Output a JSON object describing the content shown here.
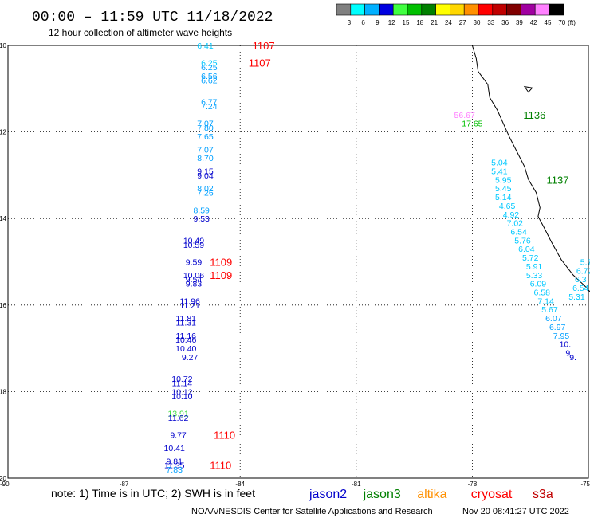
{
  "header": {
    "title": "00:00 – 11:59 UTC 11/18/2022",
    "subtitle": "12 hour collection of altimeter wave heights"
  },
  "colorbar": {
    "unit_label": "(ft)",
    "bins": [
      {
        "color": "#808080",
        "label": "3"
      },
      {
        "color": "#00ffff",
        "label": "6"
      },
      {
        "color": "#00b0ff",
        "label": "9"
      },
      {
        "color": "#0000e0",
        "label": "12"
      },
      {
        "color": "#40ff40",
        "label": "15"
      },
      {
        "color": "#00c000",
        "label": "18"
      },
      {
        "color": "#008000",
        "label": "21"
      },
      {
        "color": "#ffff00",
        "label": "24"
      },
      {
        "color": "#ffd700",
        "label": "27"
      },
      {
        "color": "#ff9000",
        "label": "30"
      },
      {
        "color": "#ff0000",
        "label": "33"
      },
      {
        "color": "#c00000",
        "label": "36"
      },
      {
        "color": "#800000",
        "label": "39"
      },
      {
        "color": "#a000a0",
        "label": "42"
      },
      {
        "color": "#ff80ff",
        "label": "45"
      },
      {
        "color": "#000000",
        "label": "70"
      }
    ]
  },
  "legend": {
    "note": "note: 1) Time is in UTC; 2) SWH is in feet",
    "satellites": [
      {
        "name": "jason2",
        "color": "#0000cc"
      },
      {
        "name": "jason3",
        "color": "#008000"
      },
      {
        "name": "altika",
        "color": "#ff9000"
      },
      {
        "name": "cryosat",
        "color": "#ff0000"
      },
      {
        "name": "s3a",
        "color": "#c00000"
      }
    ]
  },
  "footer": {
    "credit": "NOAA/NESDIS Center for Satellite Applications and Research",
    "timestamp": "Nov 20 08:41:27 UTC 2022"
  },
  "chart_data": {
    "type": "scatter",
    "xlim": [
      -90,
      -75
    ],
    "ylim": [
      -20,
      -10
    ],
    "x_ticks": [
      "-90",
      "-87",
      "-84",
      "-81",
      "-78",
      "-75"
    ],
    "y_ticks": [
      "-10",
      "-12",
      "-14",
      "-16",
      "-18",
      "-20"
    ],
    "grid": true,
    "points": [
      {
        "x": -84.9,
        "y": -10.0,
        "label": "6.41",
        "color": "#00c8ff"
      },
      {
        "x": -84.8,
        "y": -10.4,
        "label": "6.25",
        "color": "#00c8ff"
      },
      {
        "x": -84.8,
        "y": -10.5,
        "label": "6.25",
        "color": "#00a0ff"
      },
      {
        "x": -84.8,
        "y": -10.7,
        "label": "6.56",
        "color": "#00a0ff"
      },
      {
        "x": -84.8,
        "y": -10.8,
        "label": "6.62",
        "color": "#00a0ff"
      },
      {
        "x": -84.8,
        "y": -11.3,
        "label": "6.77",
        "color": "#00a0ff"
      },
      {
        "x": -84.8,
        "y": -11.4,
        "label": "7.24",
        "color": "#00a0ff"
      },
      {
        "x": -84.9,
        "y": -11.8,
        "label": "7.07",
        "color": "#00a0ff"
      },
      {
        "x": -84.9,
        "y": -11.9,
        "label": "7.80",
        "color": "#00a0ff"
      },
      {
        "x": -84.9,
        "y": -12.1,
        "label": "7.65",
        "color": "#00a0ff"
      },
      {
        "x": -84.9,
        "y": -12.4,
        "label": "7.07",
        "color": "#00a0ff"
      },
      {
        "x": -84.9,
        "y": -12.6,
        "label": "8.70",
        "color": "#00a0ff"
      },
      {
        "x": -84.9,
        "y": -12.9,
        "label": "9.15",
        "color": "#0000cc"
      },
      {
        "x": -84.9,
        "y": -13.0,
        "label": "9.04",
        "color": "#0000cc"
      },
      {
        "x": -84.9,
        "y": -13.3,
        "label": "8.02",
        "color": "#00a0ff"
      },
      {
        "x": -84.9,
        "y": -13.4,
        "label": "7.26",
        "color": "#00a0ff"
      },
      {
        "x": -85.0,
        "y": -13.8,
        "label": "8.59",
        "color": "#00a0ff"
      },
      {
        "x": -85.0,
        "y": -14.0,
        "label": "9.53",
        "color": "#0000cc"
      },
      {
        "x": -85.2,
        "y": -14.5,
        "label": "10.49",
        "color": "#0000cc"
      },
      {
        "x": -85.2,
        "y": -14.6,
        "label": "10.59",
        "color": "#0000cc"
      },
      {
        "x": -85.2,
        "y": -15.0,
        "label": "9.59",
        "color": "#0000cc"
      },
      {
        "x": -85.2,
        "y": -15.3,
        "label": "10.06",
        "color": "#0000cc"
      },
      {
        "x": -85.2,
        "y": -15.4,
        "label": "9.54",
        "color": "#0000cc"
      },
      {
        "x": -85.2,
        "y": -15.5,
        "label": "9.83",
        "color": "#0000cc"
      },
      {
        "x": -85.3,
        "y": -15.9,
        "label": "11.96",
        "color": "#0000cc"
      },
      {
        "x": -85.3,
        "y": -16.0,
        "label": "11.21",
        "color": "#0000cc"
      },
      {
        "x": -85.4,
        "y": -16.3,
        "label": "11.81",
        "color": "#0000cc"
      },
      {
        "x": -85.4,
        "y": -16.4,
        "label": "11.31",
        "color": "#0000cc"
      },
      {
        "x": -85.4,
        "y": -16.7,
        "label": "11.16",
        "color": "#0000cc"
      },
      {
        "x": -85.4,
        "y": -16.8,
        "label": "10.46",
        "color": "#0000cc"
      },
      {
        "x": -85.4,
        "y": -17.0,
        "label": "10.40",
        "color": "#0000cc"
      },
      {
        "x": -85.3,
        "y": -17.2,
        "label": "9.27",
        "color": "#0000cc"
      },
      {
        "x": -85.5,
        "y": -17.7,
        "label": "10.72",
        "color": "#0000cc"
      },
      {
        "x": -85.5,
        "y": -17.8,
        "label": "11.14",
        "color": "#0000cc"
      },
      {
        "x": -85.5,
        "y": -18.0,
        "label": "10.12",
        "color": "#0000cc"
      },
      {
        "x": -85.5,
        "y": -18.1,
        "label": "10.10",
        "color": "#0000cc"
      },
      {
        "x": -85.6,
        "y": -18.5,
        "label": "13.91",
        "color": "#40dd40"
      },
      {
        "x": -85.6,
        "y": -18.6,
        "label": "11.62",
        "color": "#0000cc"
      },
      {
        "x": -85.6,
        "y": -19.0,
        "label": "9.77",
        "color": "#0000cc"
      },
      {
        "x": -85.7,
        "y": -19.3,
        "label": "10.41",
        "color": "#0000cc"
      },
      {
        "x": -85.7,
        "y": -19.6,
        "label": "9.81",
        "color": "#0000cc"
      },
      {
        "x": -85.7,
        "y": -19.7,
        "label": "11.35",
        "color": "#0000cc"
      },
      {
        "x": -85.7,
        "y": -19.8,
        "label": "7.83",
        "color": "#00a0ff"
      },
      {
        "x": -78.2,
        "y": -11.6,
        "label": "56.67",
        "color": "#ff80ff"
      },
      {
        "x": -78.0,
        "y": -11.8,
        "label": "17.65",
        "color": "#00c000"
      },
      {
        "x": -77.3,
        "y": -12.7,
        "label": "5.04",
        "color": "#00c8ff"
      },
      {
        "x": -77.3,
        "y": -12.9,
        "label": "5.41",
        "color": "#00c8ff"
      },
      {
        "x": -77.2,
        "y": -13.1,
        "label": "5.95",
        "color": "#00c8ff"
      },
      {
        "x": -77.2,
        "y": -13.3,
        "label": "5.45",
        "color": "#00c8ff"
      },
      {
        "x": -77.2,
        "y": -13.5,
        "label": "5.14",
        "color": "#00c8ff"
      },
      {
        "x": -77.1,
        "y": -13.7,
        "label": "4.65",
        "color": "#00c8ff"
      },
      {
        "x": -77.0,
        "y": -13.9,
        "label": "4.92",
        "color": "#00c8ff"
      },
      {
        "x": -76.9,
        "y": -14.1,
        "label": "7.02",
        "color": "#00c8ff"
      },
      {
        "x": -76.8,
        "y": -14.3,
        "label": "6.54",
        "color": "#00c8ff"
      },
      {
        "x": -76.7,
        "y": -14.5,
        "label": "5.76",
        "color": "#00c8ff"
      },
      {
        "x": -76.6,
        "y": -14.7,
        "label": "6.04",
        "color": "#00c8ff"
      },
      {
        "x": -76.5,
        "y": -14.9,
        "label": "5.72",
        "color": "#00c8ff"
      },
      {
        "x": -76.4,
        "y": -15.1,
        "label": "5.91",
        "color": "#00c8ff"
      },
      {
        "x": -76.4,
        "y": -15.3,
        "label": "5.33",
        "color": "#00c8ff"
      },
      {
        "x": -76.3,
        "y": -15.5,
        "label": "6.09",
        "color": "#00c8ff"
      },
      {
        "x": -76.2,
        "y": -15.7,
        "label": "6.58",
        "color": "#00c8ff"
      },
      {
        "x": -76.1,
        "y": -15.9,
        "label": "7.14",
        "color": "#00c8ff"
      },
      {
        "x": -76.0,
        "y": -16.1,
        "label": "5.67",
        "color": "#00c8ff"
      },
      {
        "x": -75.9,
        "y": -16.3,
        "label": "6.07",
        "color": "#00a0ff"
      },
      {
        "x": -75.8,
        "y": -16.5,
        "label": "6.97",
        "color": "#00a0ff"
      },
      {
        "x": -75.7,
        "y": -16.7,
        "label": "7.95",
        "color": "#00a0ff"
      },
      {
        "x": -75.6,
        "y": -16.9,
        "label": "10.",
        "color": "#0000cc"
      },
      {
        "x": -75.5,
        "y": -17.1,
        "label": "9.",
        "color": "#0000cc"
      },
      {
        "x": -75.4,
        "y": -17.2,
        "label": "9.",
        "color": "#0000cc"
      },
      {
        "x": -75.0,
        "y": -15.0,
        "label": "5.73",
        "color": "#00c8ff"
      },
      {
        "x": -75.1,
        "y": -15.2,
        "label": "6.72",
        "color": "#00c8ff"
      },
      {
        "x": -75.2,
        "y": -15.4,
        "label": "6.3",
        "color": "#00c8ff"
      },
      {
        "x": -75.2,
        "y": -15.6,
        "label": "6.54",
        "color": "#00c8ff"
      },
      {
        "x": -75.3,
        "y": -15.8,
        "label": "5.31",
        "color": "#00c8ff"
      }
    ],
    "annotations": [
      {
        "x": -84.3,
        "y": -10.0,
        "label": "1107",
        "color": "#ff0000"
      },
      {
        "x": -84.4,
        "y": -10.4,
        "label": "1107",
        "color": "#ff0000"
      },
      {
        "x": -85.4,
        "y": -15.0,
        "label": "1109",
        "color": "#ff0000"
      },
      {
        "x": -85.4,
        "y": -15.3,
        "label": "1109",
        "color": "#ff0000"
      },
      {
        "x": -85.3,
        "y": -19.0,
        "label": "1110",
        "color": "#ff0000"
      },
      {
        "x": -85.4,
        "y": -19.7,
        "label": "1110",
        "color": "#ff0000"
      },
      {
        "x": -77.3,
        "y": -11.6,
        "label": "1136",
        "color": "#008000"
      },
      {
        "x": -76.7,
        "y": -13.1,
        "label": "1137",
        "color": "#008000"
      }
    ]
  }
}
